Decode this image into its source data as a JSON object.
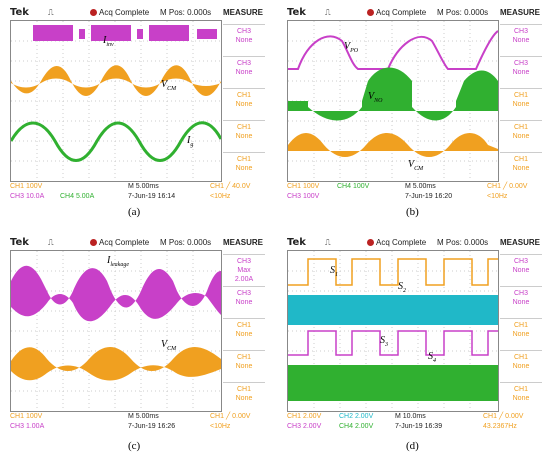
{
  "colors": {
    "ch1": "#f0a020",
    "ch2": "#20b8c8",
    "ch3": "#c840c8",
    "ch4": "#30b030"
  },
  "panels": [
    {
      "header": {
        "brand": "Tek",
        "trigger": "⎍",
        "acq": "Acq Complete",
        "mpos": "M Pos: 0.000s",
        "menu": "MEASURE"
      },
      "side": [
        {
          "ch": "CH3",
          "val": "None"
        },
        {
          "ch": "CH3",
          "val": "None"
        },
        {
          "ch": "CH1",
          "val": "None"
        },
        {
          "ch": "CH1",
          "val": "None"
        },
        {
          "ch": "CH1",
          "val": "None"
        }
      ],
      "foot": {
        "a": "CH1  100V",
        "b": "CH3  10.0A",
        "c": "CH4  5.00A",
        "d": "M 5.00ms",
        "e": "7-Jun-19 16:14",
        "f": "CH1 ╱ 40.0V",
        "g": "<10Hz"
      },
      "labels": {
        "l1": "I",
        "l1s": "inv",
        "l2": "V",
        "l2s": "CM",
        "l3": "I",
        "l3s": "g"
      },
      "caption": "(a)"
    },
    {
      "header": {
        "brand": "Tek",
        "trigger": "⎍",
        "acq": "Acq Complete",
        "mpos": "M Pos: 0.000s",
        "menu": "MEASURE"
      },
      "side": [
        {
          "ch": "CH3",
          "val": "None"
        },
        {
          "ch": "CH3",
          "val": "None"
        },
        {
          "ch": "CH1",
          "val": "None"
        },
        {
          "ch": "CH1",
          "val": "None"
        },
        {
          "ch": "CH1",
          "val": "None"
        }
      ],
      "foot": {
        "a": "CH1  100V",
        "b": "CH3  100V",
        "c": "CH4  100V",
        "d": "M 5.00ms",
        "e": "7-Jun-19 16:20",
        "f": "CH1 ╱ 0.00V",
        "g": "<10Hz"
      },
      "labels": {
        "l1": "V",
        "l1s": "PO",
        "l2": "V",
        "l2s": "NO",
        "l3": "V",
        "l3s": "CM"
      },
      "caption": "(b)"
    },
    {
      "header": {
        "brand": "Tek",
        "trigger": "⎍",
        "acq": "Acq Complete",
        "mpos": "M Pos: 0.000s",
        "menu": "MEASURE"
      },
      "side": [
        {
          "ch": "CH3",
          "val": "Max",
          "val2": "2.00A"
        },
        {
          "ch": "CH3",
          "val": "None"
        },
        {
          "ch": "CH1",
          "val": "None"
        },
        {
          "ch": "CH1",
          "val": "None"
        },
        {
          "ch": "CH1",
          "val": "None"
        }
      ],
      "foot": {
        "a": "CH1  100V",
        "b": "CH3  1.00A",
        "c": "",
        "d": "M 5.00ms",
        "e": "7-Jun-19 16:26",
        "f": "CH1 ╱ 0.00V",
        "g": "<10Hz"
      },
      "labels": {
        "l1": "I",
        "l1s": "leakage",
        "l2": "V",
        "l2s": "CM"
      },
      "caption": "(c)"
    },
    {
      "header": {
        "brand": "Tek",
        "trigger": "⎍",
        "acq": "Acq Complete",
        "mpos": "M Pos: 0.000s",
        "menu": "MEASURE"
      },
      "side": [
        {
          "ch": "CH3",
          "val": "None"
        },
        {
          "ch": "CH3",
          "val": "None"
        },
        {
          "ch": "CH1",
          "val": "None"
        },
        {
          "ch": "CH1",
          "val": "None"
        },
        {
          "ch": "CH1",
          "val": "None"
        }
      ],
      "foot": {
        "a": "CH1  2.00V",
        "b": "CH3  2.00V",
        "c": "CH2  2.00V",
        "c2": "CH4  2.00V",
        "d": "M 10.0ms",
        "e": "7-Jun-19 16:39",
        "f": "CH1 ╱ 0.00V",
        "g": "43.2367Hz"
      },
      "labels": {
        "l1": "S",
        "l1s": "1",
        "l2": "S",
        "l2s": "2",
        "l3": "S",
        "l3s": "3",
        "l4": "S",
        "l4s": "4"
      },
      "caption": "(d)"
    }
  ]
}
